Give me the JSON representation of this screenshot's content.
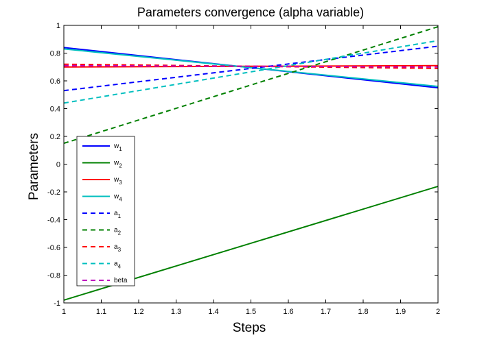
{
  "chart_data": {
    "type": "line",
    "title": "Parameters convergence (alpha variable)",
    "xlabel": "Steps",
    "ylabel": "Parameters",
    "xlim": [
      1,
      2
    ],
    "ylim": [
      -1,
      1
    ],
    "xticks": [
      "1",
      "1.1",
      "1.2",
      "1.3",
      "1.4",
      "1.5",
      "1.6",
      "1.7",
      "1.8",
      "1.9",
      "2"
    ],
    "yticks": [
      "-1",
      "-0.8",
      "-0.6",
      "-0.4",
      "-0.2",
      "0",
      "0.2",
      "0.4",
      "0.6",
      "0.8",
      "1"
    ],
    "grid": false,
    "legend_position": "left",
    "series": [
      {
        "name": "w",
        "sub": "1",
        "color": "#0000ff",
        "style": "solid",
        "x": [
          1,
          2
        ],
        "y": [
          0.84,
          0.55
        ]
      },
      {
        "name": "w",
        "sub": "2",
        "color": "#008000",
        "style": "solid",
        "x": [
          1,
          2
        ],
        "y": [
          -0.98,
          -0.16
        ]
      },
      {
        "name": "w",
        "sub": "3",
        "color": "#ff0000",
        "style": "solid",
        "x": [
          1,
          2
        ],
        "y": [
          0.7,
          0.71
        ]
      },
      {
        "name": "w",
        "sub": "4",
        "color": "#00bfbf",
        "style": "solid",
        "x": [
          1,
          2
        ],
        "y": [
          0.83,
          0.56
        ]
      },
      {
        "name": "a",
        "sub": "1",
        "color": "#0000ff",
        "style": "dashed",
        "x": [
          1,
          2
        ],
        "y": [
          0.53,
          0.85
        ]
      },
      {
        "name": "a",
        "sub": "2",
        "color": "#008000",
        "style": "dashed",
        "x": [
          1,
          2
        ],
        "y": [
          0.15,
          0.99
        ]
      },
      {
        "name": "a",
        "sub": "3",
        "color": "#ff0000",
        "style": "dashed",
        "x": [
          1,
          2
        ],
        "y": [
          0.72,
          0.69
        ]
      },
      {
        "name": "a",
        "sub": "4",
        "color": "#00bfbf",
        "style": "dashed",
        "x": [
          1,
          2
        ],
        "y": [
          0.44,
          0.89
        ]
      },
      {
        "name": "beta",
        "sub": "",
        "color": "#bf00bf",
        "style": "dashed",
        "x": [
          1,
          2
        ],
        "y": [
          0.71,
          0.7
        ]
      }
    ]
  }
}
